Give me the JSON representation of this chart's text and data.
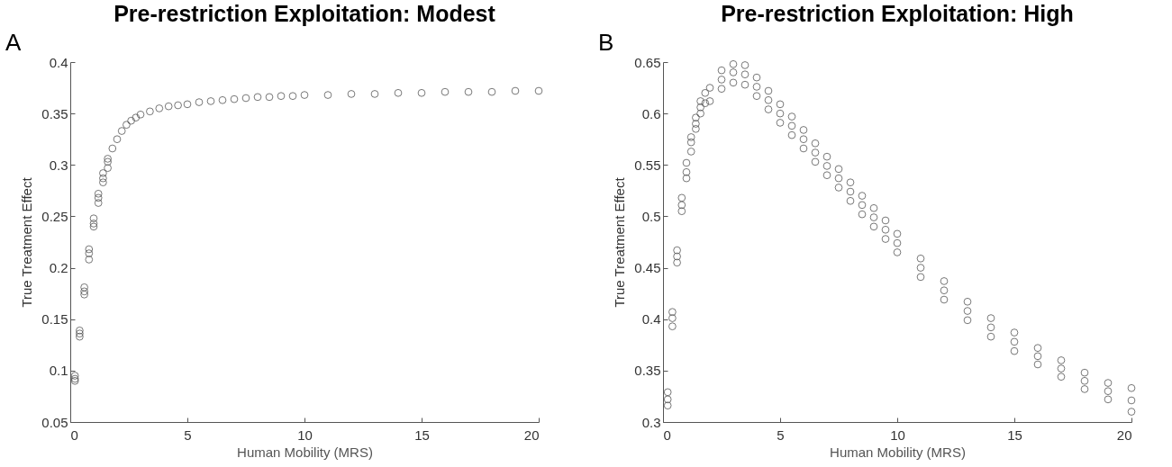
{
  "chart_data": [
    {
      "type": "scatter",
      "title": "Pre-restriction Exploitation: Modest",
      "xlabel": "Human Mobility (MRS)",
      "ylabel": "True Treatment Effect",
      "annotations": [
        "A"
      ],
      "xlim": [
        0,
        20
      ],
      "xticks": [
        0,
        5,
        10,
        15,
        20
      ],
      "ylim": [
        0.05,
        0.4
      ],
      "yticks": [
        0.05,
        0.1,
        0.15,
        0.2,
        0.25,
        0.3,
        0.35,
        0.4
      ],
      "marker": "circle",
      "grid": false,
      "series": [
        {
          "color": "#555555",
          "x": [
            0.2,
            0.2,
            0.2,
            0.4,
            0.4,
            0.4,
            0.6,
            0.6,
            0.6,
            0.8,
            0.8,
            0.8,
            1.0,
            1.0,
            1.0,
            1.2,
            1.2,
            1.2,
            1.4,
            1.4,
            1.4,
            1.6,
            1.6,
            1.6,
            1.8,
            2.0,
            2.2,
            2.4,
            2.6,
            2.8,
            3.0,
            3.4,
            3.8,
            4.2,
            4.6,
            5,
            5.5,
            6,
            6.5,
            7,
            7.5,
            8,
            8.5,
            9,
            9.5,
            10,
            11,
            12,
            13,
            14,
            15,
            16,
            17,
            18,
            19,
            20
          ],
          "values": [
            0.09,
            0.092,
            0.095,
            0.133,
            0.136,
            0.139,
            0.174,
            0.177,
            0.181,
            0.208,
            0.214,
            0.218,
            0.24,
            0.243,
            0.248,
            0.263,
            0.268,
            0.272,
            0.283,
            0.287,
            0.292,
            0.297,
            0.303,
            0.306,
            0.316,
            0.325,
            0.333,
            0.339,
            0.343,
            0.346,
            0.349,
            0.352,
            0.355,
            0.357,
            0.358,
            0.359,
            0.361,
            0.362,
            0.363,
            0.364,
            0.365,
            0.366,
            0.366,
            0.367,
            0.367,
            0.368,
            0.368,
            0.369,
            0.369,
            0.37,
            0.37,
            0.371,
            0.371,
            0.371,
            0.372,
            0.372
          ]
        }
      ]
    },
    {
      "type": "scatter",
      "title": "Pre-restriction Exploitation: High",
      "xlabel": "Human Mobility (MRS)",
      "ylabel": "True Treatment Effect",
      "annotations": [
        "B"
      ],
      "xlim": [
        0,
        20
      ],
      "xticks": [
        0,
        5,
        10,
        15,
        20
      ],
      "ylim": [
        0.3,
        0.65
      ],
      "yticks": [
        0.3,
        0.35,
        0.4,
        0.45,
        0.5,
        0.55,
        0.6,
        0.65
      ],
      "marker": "circle",
      "grid": false,
      "series": [
        {
          "color": "#555555",
          "x": [
            0.2,
            0.2,
            0.2,
            0.4,
            0.4,
            0.4,
            0.6,
            0.6,
            0.6,
            0.8,
            0.8,
            0.8,
            1.0,
            1.0,
            1.0,
            1.2,
            1.2,
            1.2,
            1.4,
            1.4,
            1.4,
            1.6,
            1.6,
            1.6,
            1.8,
            1.8,
            2.0,
            2.0,
            2.5,
            2.5,
            2.5,
            3,
            3,
            3,
            3.5,
            3.5,
            3.5,
            4,
            4,
            4,
            4.5,
            4.5,
            4.5,
            5,
            5,
            5,
            5.5,
            5.5,
            5.5,
            6,
            6,
            6,
            6.5,
            6.5,
            6.5,
            7,
            7,
            7,
            7.5,
            7.5,
            7.5,
            8,
            8,
            8,
            8.5,
            8.5,
            8.5,
            9,
            9,
            9,
            9.5,
            9.5,
            9.5,
            10,
            10,
            10,
            11,
            11,
            11,
            12,
            12,
            12,
            13,
            13,
            13,
            14,
            14,
            14,
            15,
            15,
            15,
            16,
            16,
            16,
            17,
            17,
            17,
            18,
            18,
            18,
            19,
            19,
            19,
            20,
            20,
            20
          ],
          "values": [
            0.316,
            0.322,
            0.329,
            0.393,
            0.401,
            0.407,
            0.455,
            0.461,
            0.467,
            0.505,
            0.511,
            0.518,
            0.537,
            0.543,
            0.552,
            0.563,
            0.572,
            0.577,
            0.585,
            0.59,
            0.596,
            0.6,
            0.606,
            0.612,
            0.61,
            0.62,
            0.612,
            0.625,
            0.624,
            0.633,
            0.642,
            0.63,
            0.64,
            0.648,
            0.628,
            0.638,
            0.647,
            0.617,
            0.626,
            0.635,
            0.604,
            0.613,
            0.622,
            0.591,
            0.6,
            0.609,
            0.579,
            0.588,
            0.597,
            0.566,
            0.575,
            0.584,
            0.553,
            0.562,
            0.571,
            0.54,
            0.549,
            0.558,
            0.528,
            0.537,
            0.546,
            0.515,
            0.524,
            0.533,
            0.502,
            0.511,
            0.52,
            0.49,
            0.499,
            0.508,
            0.478,
            0.487,
            0.496,
            0.465,
            0.474,
            0.483,
            0.441,
            0.45,
            0.459,
            0.419,
            0.428,
            0.437,
            0.399,
            0.408,
            0.417,
            0.383,
            0.392,
            0.401,
            0.369,
            0.378,
            0.387,
            0.356,
            0.364,
            0.372,
            0.344,
            0.352,
            0.36,
            0.332,
            0.34,
            0.348,
            0.322,
            0.33,
            0.338,
            0.31,
            0.321,
            0.333
          ]
        }
      ]
    }
  ]
}
